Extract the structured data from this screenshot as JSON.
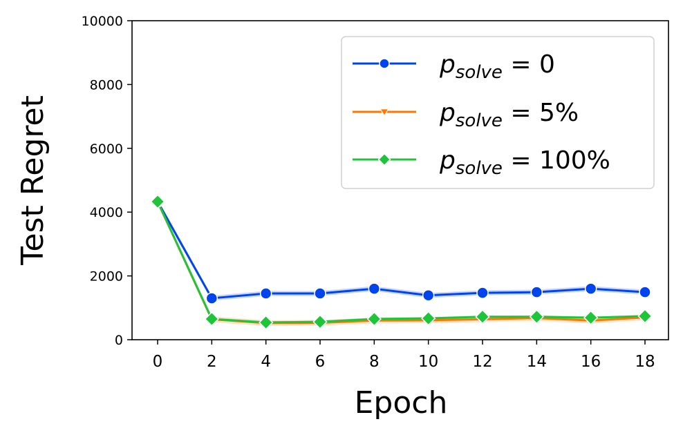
{
  "chart_data": {
    "type": "line",
    "title": "",
    "xlabel": "Epoch",
    "ylabel": "Test Regret",
    "xlim": [
      -1,
      19
    ],
    "ylim": [
      0,
      10000
    ],
    "x_ticks": [
      0,
      2,
      4,
      6,
      8,
      10,
      12,
      14,
      16,
      18
    ],
    "y_ticks": [
      0,
      2000,
      4000,
      6000,
      8000,
      10000
    ],
    "x": [
      0,
      2,
      4,
      6,
      8,
      10,
      12,
      14,
      16,
      18
    ],
    "grid": false,
    "legend_position": "upper right",
    "series": [
      {
        "name": "p_solve = 0",
        "legend_main": "p",
        "legend_sub": "solve",
        "legend_rest": " = 0",
        "color": "#0044ee",
        "marker": "circle",
        "values": [
          4330,
          1300,
          1450,
          1450,
          1600,
          1390,
          1470,
          1490,
          1600,
          1490
        ],
        "band": 80
      },
      {
        "name": "p_solve = 5%",
        "legend_main": "p",
        "legend_sub": "solve",
        "legend_rest": " = 5%",
        "color": "#ff7700",
        "marker": "triangle-down",
        "values": [
          4330,
          640,
          520,
          530,
          600,
          610,
          640,
          680,
          600,
          700
        ],
        "band": 90
      },
      {
        "name": "p_solve = 100%",
        "legend_main": "p",
        "legend_sub": "solve",
        "legend_rest": " = 100%",
        "color": "#1ec43a",
        "marker": "diamond",
        "values": [
          4330,
          650,
          540,
          560,
          650,
          670,
          720,
          720,
          690,
          740
        ],
        "band": 40
      }
    ]
  }
}
